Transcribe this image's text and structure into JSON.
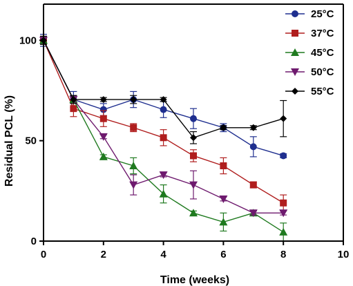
{
  "chart_data": {
    "type": "line",
    "title": "",
    "xlabel": "Time (weeks)",
    "ylabel": "Residual PCL (%)",
    "xlim": [
      0,
      10
    ],
    "ylim": [
      0,
      118
    ],
    "x_ticks": [
      0,
      2,
      4,
      6,
      8,
      10
    ],
    "y_ticks": [
      0,
      50,
      100
    ],
    "grid": false,
    "legend_position": "top-right",
    "error_bars": true,
    "series": [
      {
        "name": "25°C",
        "color": "#1f2f8f",
        "marker": "circle",
        "x": [
          0,
          1,
          2,
          3,
          4,
          5,
          6,
          7,
          8
        ],
        "y": [
          100,
          70.5,
          65.5,
          70.5,
          65.5,
          61,
          56.5,
          47,
          42.5
        ],
        "err": [
          3,
          4,
          3,
          4,
          4,
          5,
          2,
          5,
          1
        ]
      },
      {
        "name": "37°C",
        "color": "#b01e1e",
        "marker": "square",
        "x": [
          0,
          1,
          2,
          3,
          4,
          5,
          6,
          7,
          8
        ],
        "y": [
          100,
          66,
          61,
          56.5,
          51.5,
          42.5,
          37.5,
          28,
          19
        ],
        "err": [
          2,
          4,
          4,
          2,
          4,
          3,
          4,
          1.5,
          4
        ]
      },
      {
        "name": "45°C",
        "color": "#1f7a1f",
        "marker": "triangle",
        "x": [
          0,
          1,
          2,
          3,
          4,
          5,
          6,
          7,
          8
        ],
        "y": [
          100,
          70.5,
          42,
          37.5,
          23.5,
          14,
          9.5,
          14,
          4.5
        ],
        "err": [
          2,
          2,
          1,
          4,
          4.5,
          1,
          4.5,
          1,
          4.5
        ]
      },
      {
        "name": "50°C",
        "color": "#6e1a6e",
        "marker": "triangle-down",
        "x": [
          0,
          1,
          2,
          3,
          4,
          5,
          6,
          7,
          8
        ],
        "y": [
          100,
          70.5,
          52,
          28,
          33,
          28,
          21,
          14,
          14
        ],
        "err": [
          2,
          2,
          1,
          5,
          1,
          7,
          1,
          1,
          1
        ]
      },
      {
        "name": "55°C",
        "color": "#000000",
        "marker": "diamond",
        "x": [
          0,
          1,
          2,
          3,
          4,
          5,
          6,
          7,
          8
        ],
        "y": [
          100,
          70.5,
          70.5,
          70.5,
          70.5,
          51.5,
          56.5,
          56.5,
          61
        ],
        "err": [
          2,
          2,
          1,
          2,
          1,
          3,
          1,
          1,
          9
        ]
      }
    ]
  }
}
